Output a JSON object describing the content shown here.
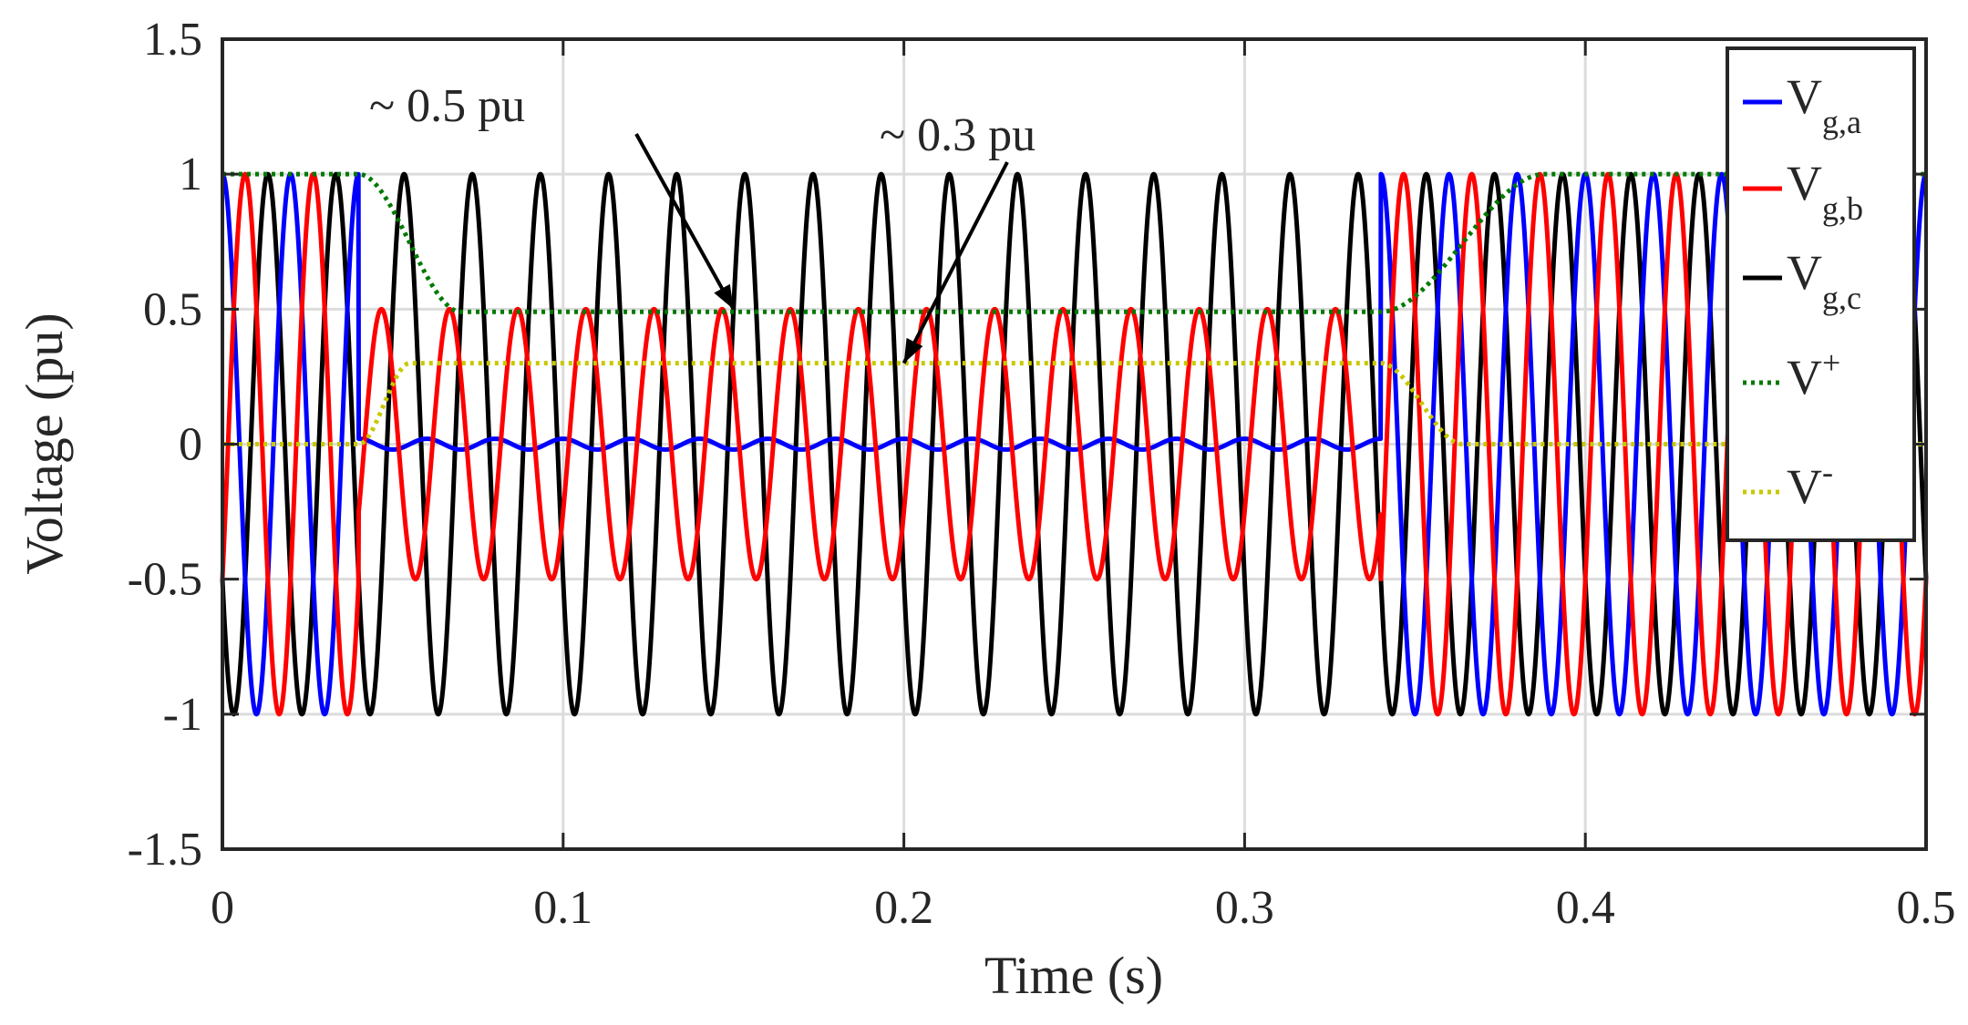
{
  "chart_data": {
    "type": "line",
    "title": "",
    "xlabel": "Time (s)",
    "ylabel": "Voltage (pu)",
    "xlim": [
      0,
      0.5
    ],
    "ylim": [
      -1.5,
      1.5
    ],
    "grid": true,
    "xticks": [
      "0",
      "0.1",
      "0.2",
      "0.3",
      "0.4",
      "0.5"
    ],
    "yticks": [
      "1.5",
      "1",
      "0.5",
      "0",
      "-0.5",
      "-1",
      "-1.5"
    ],
    "xtick_values": [
      0,
      0.1,
      0.2,
      0.3,
      0.4,
      0.5
    ],
    "ytick_values": [
      1.5,
      1,
      0.5,
      0,
      -0.5,
      -1,
      -1.5
    ],
    "fault": {
      "start_s": 0.04,
      "end_s": 0.34,
      "frequency_hz": 50
    },
    "series": [
      {
        "name": "V_g,a",
        "main": "V",
        "sub": "g,a",
        "sup": "",
        "color": "#0000ff",
        "style": "solid",
        "pre_fault_amplitude": 1.0,
        "during_fault_amplitude": 0.02,
        "post_fault_amplitude": 1.0,
        "phase_deg": 0
      },
      {
        "name": "V_g,b",
        "main": "V",
        "sub": "g,b",
        "sup": "",
        "color": "#ff0000",
        "style": "solid",
        "pre_fault_amplitude": 1.0,
        "during_fault_amplitude": 0.5,
        "post_fault_amplitude": 1.0,
        "phase_deg": -120
      },
      {
        "name": "V_g,c",
        "main": "V",
        "sub": "g,c",
        "sup": "",
        "color": "#000000",
        "style": "solid",
        "pre_fault_amplitude": 1.0,
        "during_fault_amplitude": 1.0,
        "post_fault_amplitude": 1.0,
        "phase_deg": 120
      },
      {
        "name": "V+",
        "main": "V",
        "sub": "",
        "sup": "+",
        "color": "#007a00",
        "style": "dotted",
        "pre_fault_value": 1.0,
        "during_fault_value": 0.49,
        "post_fault_value": 1.0,
        "settle_time_s": 0.03
      },
      {
        "name": "V-",
        "main": "V",
        "sub": "",
        "sup": "-",
        "color": "#c8c800",
        "style": "dotted",
        "pre_fault_value": 0.0,
        "during_fault_value": 0.3,
        "post_fault_value": 0.0,
        "settle_time_s": 0.015
      }
    ],
    "annotations": [
      {
        "text": "~ 0.5 pu",
        "arrow_to_x": 0.15,
        "arrow_to_y": 0.5
      },
      {
        "text": "~ 0.3 pu",
        "arrow_to_x": 0.2,
        "arrow_to_y": 0.3
      }
    ],
    "legend_position": "top-right"
  }
}
